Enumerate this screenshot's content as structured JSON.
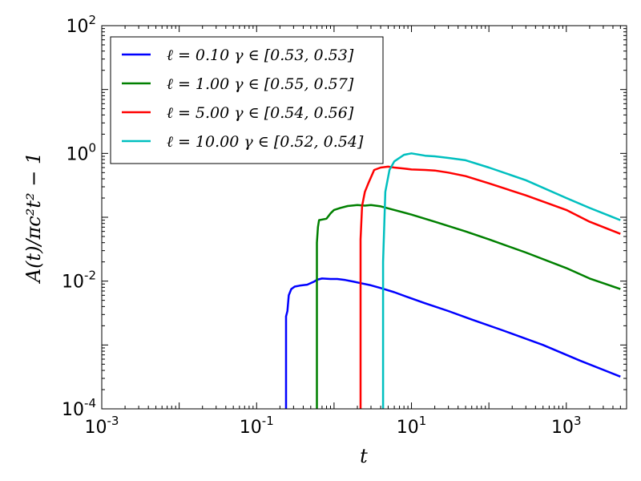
{
  "chart_data": {
    "type": "line",
    "xscale": "log",
    "yscale": "log",
    "xlim": [
      0.001,
      6000
    ],
    "ylim": [
      0.0001,
      100
    ],
    "xlabel": "t",
    "ylabel": "A(t)/πc²t² − 1",
    "xticks": [
      {
        "value": 0.001,
        "base": "10",
        "exp": "-3"
      },
      {
        "value": 0.1,
        "base": "10",
        "exp": "-1"
      },
      {
        "value": 10,
        "base": "10",
        "exp": "1"
      },
      {
        "value": 1000,
        "base": "10",
        "exp": "3"
      }
    ],
    "yticks": [
      {
        "value": 0.0001,
        "base": "10",
        "exp": "-4"
      },
      {
        "value": 0.01,
        "base": "10",
        "exp": "-2"
      },
      {
        "value": 1,
        "base": "10",
        "exp": "0"
      },
      {
        "value": 100,
        "base": "10",
        "exp": "2"
      }
    ],
    "legend_position": "top-left",
    "grid": false,
    "series": [
      {
        "name": "ℓ = 0.10   γ ∈ [0.53, 0.53]",
        "color": "#0000ff",
        "points": [
          [
            0.24,
            0.0001
          ],
          [
            0.24,
            0.0028
          ],
          [
            0.25,
            0.0034
          ],
          [
            0.26,
            0.006
          ],
          [
            0.28,
            0.0075
          ],
          [
            0.31,
            0.0082
          ],
          [
            0.36,
            0.0085
          ],
          [
            0.45,
            0.0088
          ],
          [
            0.55,
            0.0098
          ],
          [
            0.6,
            0.0105
          ],
          [
            0.7,
            0.011
          ],
          [
            0.9,
            0.0108
          ],
          [
            1.1,
            0.0108
          ],
          [
            1.4,
            0.0104
          ],
          [
            1.8,
            0.0098
          ],
          [
            2.2,
            0.0093
          ],
          [
            3,
            0.0086
          ],
          [
            4,
            0.0078
          ],
          [
            6,
            0.0067
          ],
          [
            9,
            0.0056
          ],
          [
            15,
            0.0045
          ],
          [
            30,
            0.0034
          ],
          [
            60,
            0.0025
          ],
          [
            150,
            0.0017
          ],
          [
            500,
            0.001
          ],
          [
            1500,
            0.00057
          ],
          [
            5000,
            0.00032
          ]
        ]
      },
      {
        "name": "ℓ = 1.00   γ ∈ [0.55, 0.57]",
        "color": "#008000",
        "points": [
          [
            0.6,
            0.0001
          ],
          [
            0.6,
            0.04
          ],
          [
            0.62,
            0.07
          ],
          [
            0.64,
            0.09
          ],
          [
            0.8,
            0.095
          ],
          [
            0.9,
            0.115
          ],
          [
            1.0,
            0.13
          ],
          [
            1.2,
            0.14
          ],
          [
            1.5,
            0.15
          ],
          [
            2.0,
            0.155
          ],
          [
            2.5,
            0.152
          ],
          [
            3.0,
            0.155
          ],
          [
            4,
            0.148
          ],
          [
            6,
            0.13
          ],
          [
            10,
            0.11
          ],
          [
            20,
            0.085
          ],
          [
            50,
            0.06
          ],
          [
            100,
            0.045
          ],
          [
            300,
            0.028
          ],
          [
            1000,
            0.016
          ],
          [
            2000,
            0.011
          ],
          [
            5000,
            0.0075
          ]
        ]
      },
      {
        "name": "ℓ = 5.00   γ ∈ [0.54, 0.56]",
        "color": "#ff0000",
        "points": [
          [
            2.2,
            0.0001
          ],
          [
            2.2,
            0.045
          ],
          [
            2.3,
            0.15
          ],
          [
            2.5,
            0.25
          ],
          [
            2.8,
            0.35
          ],
          [
            3.3,
            0.55
          ],
          [
            4,
            0.6
          ],
          [
            5,
            0.62
          ],
          [
            6,
            0.6
          ],
          [
            8,
            0.58
          ],
          [
            10,
            0.56
          ],
          [
            15,
            0.55
          ],
          [
            20,
            0.54
          ],
          [
            30,
            0.5
          ],
          [
            50,
            0.44
          ],
          [
            100,
            0.34
          ],
          [
            300,
            0.22
          ],
          [
            1000,
            0.13
          ],
          [
            2000,
            0.085
          ],
          [
            5000,
            0.055
          ]
        ]
      },
      {
        "name": "ℓ = 10.00   γ ∈ [0.52, 0.54]",
        "color": "#00bfbf",
        "points": [
          [
            4.3,
            0.0001
          ],
          [
            4.3,
            0.02
          ],
          [
            4.6,
            0.25
          ],
          [
            5.2,
            0.55
          ],
          [
            6,
            0.75
          ],
          [
            8,
            0.95
          ],
          [
            10,
            1.0
          ],
          [
            15,
            0.92
          ],
          [
            20,
            0.9
          ],
          [
            30,
            0.85
          ],
          [
            50,
            0.78
          ],
          [
            100,
            0.6
          ],
          [
            300,
            0.38
          ],
          [
            1000,
            0.2
          ],
          [
            2000,
            0.14
          ],
          [
            5000,
            0.09
          ]
        ]
      }
    ]
  }
}
